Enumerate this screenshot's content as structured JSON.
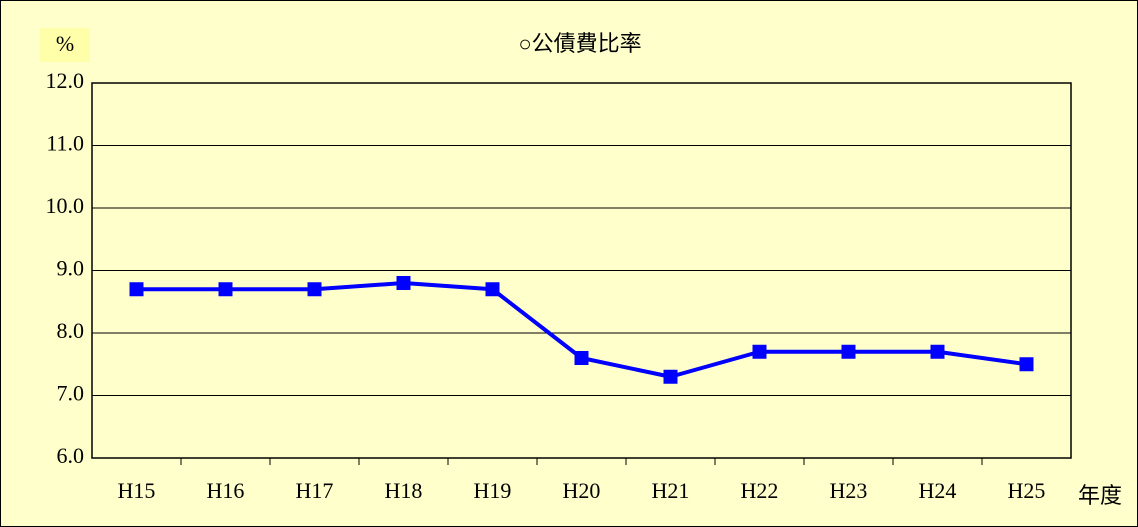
{
  "chart_data": {
    "type": "line",
    "title": "○公債費比率",
    "y_label": "%",
    "x_label": "年度",
    "categories": [
      "H15",
      "H16",
      "H17",
      "H18",
      "H19",
      "H20",
      "H21",
      "H22",
      "H23",
      "H24",
      "H25"
    ],
    "series": [
      {
        "name": "公債費比率",
        "color": "#0000ff",
        "values": [
          8.7,
          8.7,
          8.7,
          8.8,
          8.7,
          7.6,
          7.3,
          7.7,
          7.7,
          7.7,
          7.5
        ]
      }
    ],
    "ylim": [
      6,
      12
    ],
    "yticks": [
      {
        "value": 6,
        "label": "6.0"
      },
      {
        "value": 7,
        "label": "7.0"
      },
      {
        "value": 8,
        "label": "8.0"
      },
      {
        "value": 9,
        "label": "9.0"
      },
      {
        "value": 10,
        "label": "10.0"
      },
      {
        "value": 11,
        "label": "11.0"
      },
      {
        "value": 12,
        "label": "12.0"
      }
    ],
    "grid": true
  }
}
